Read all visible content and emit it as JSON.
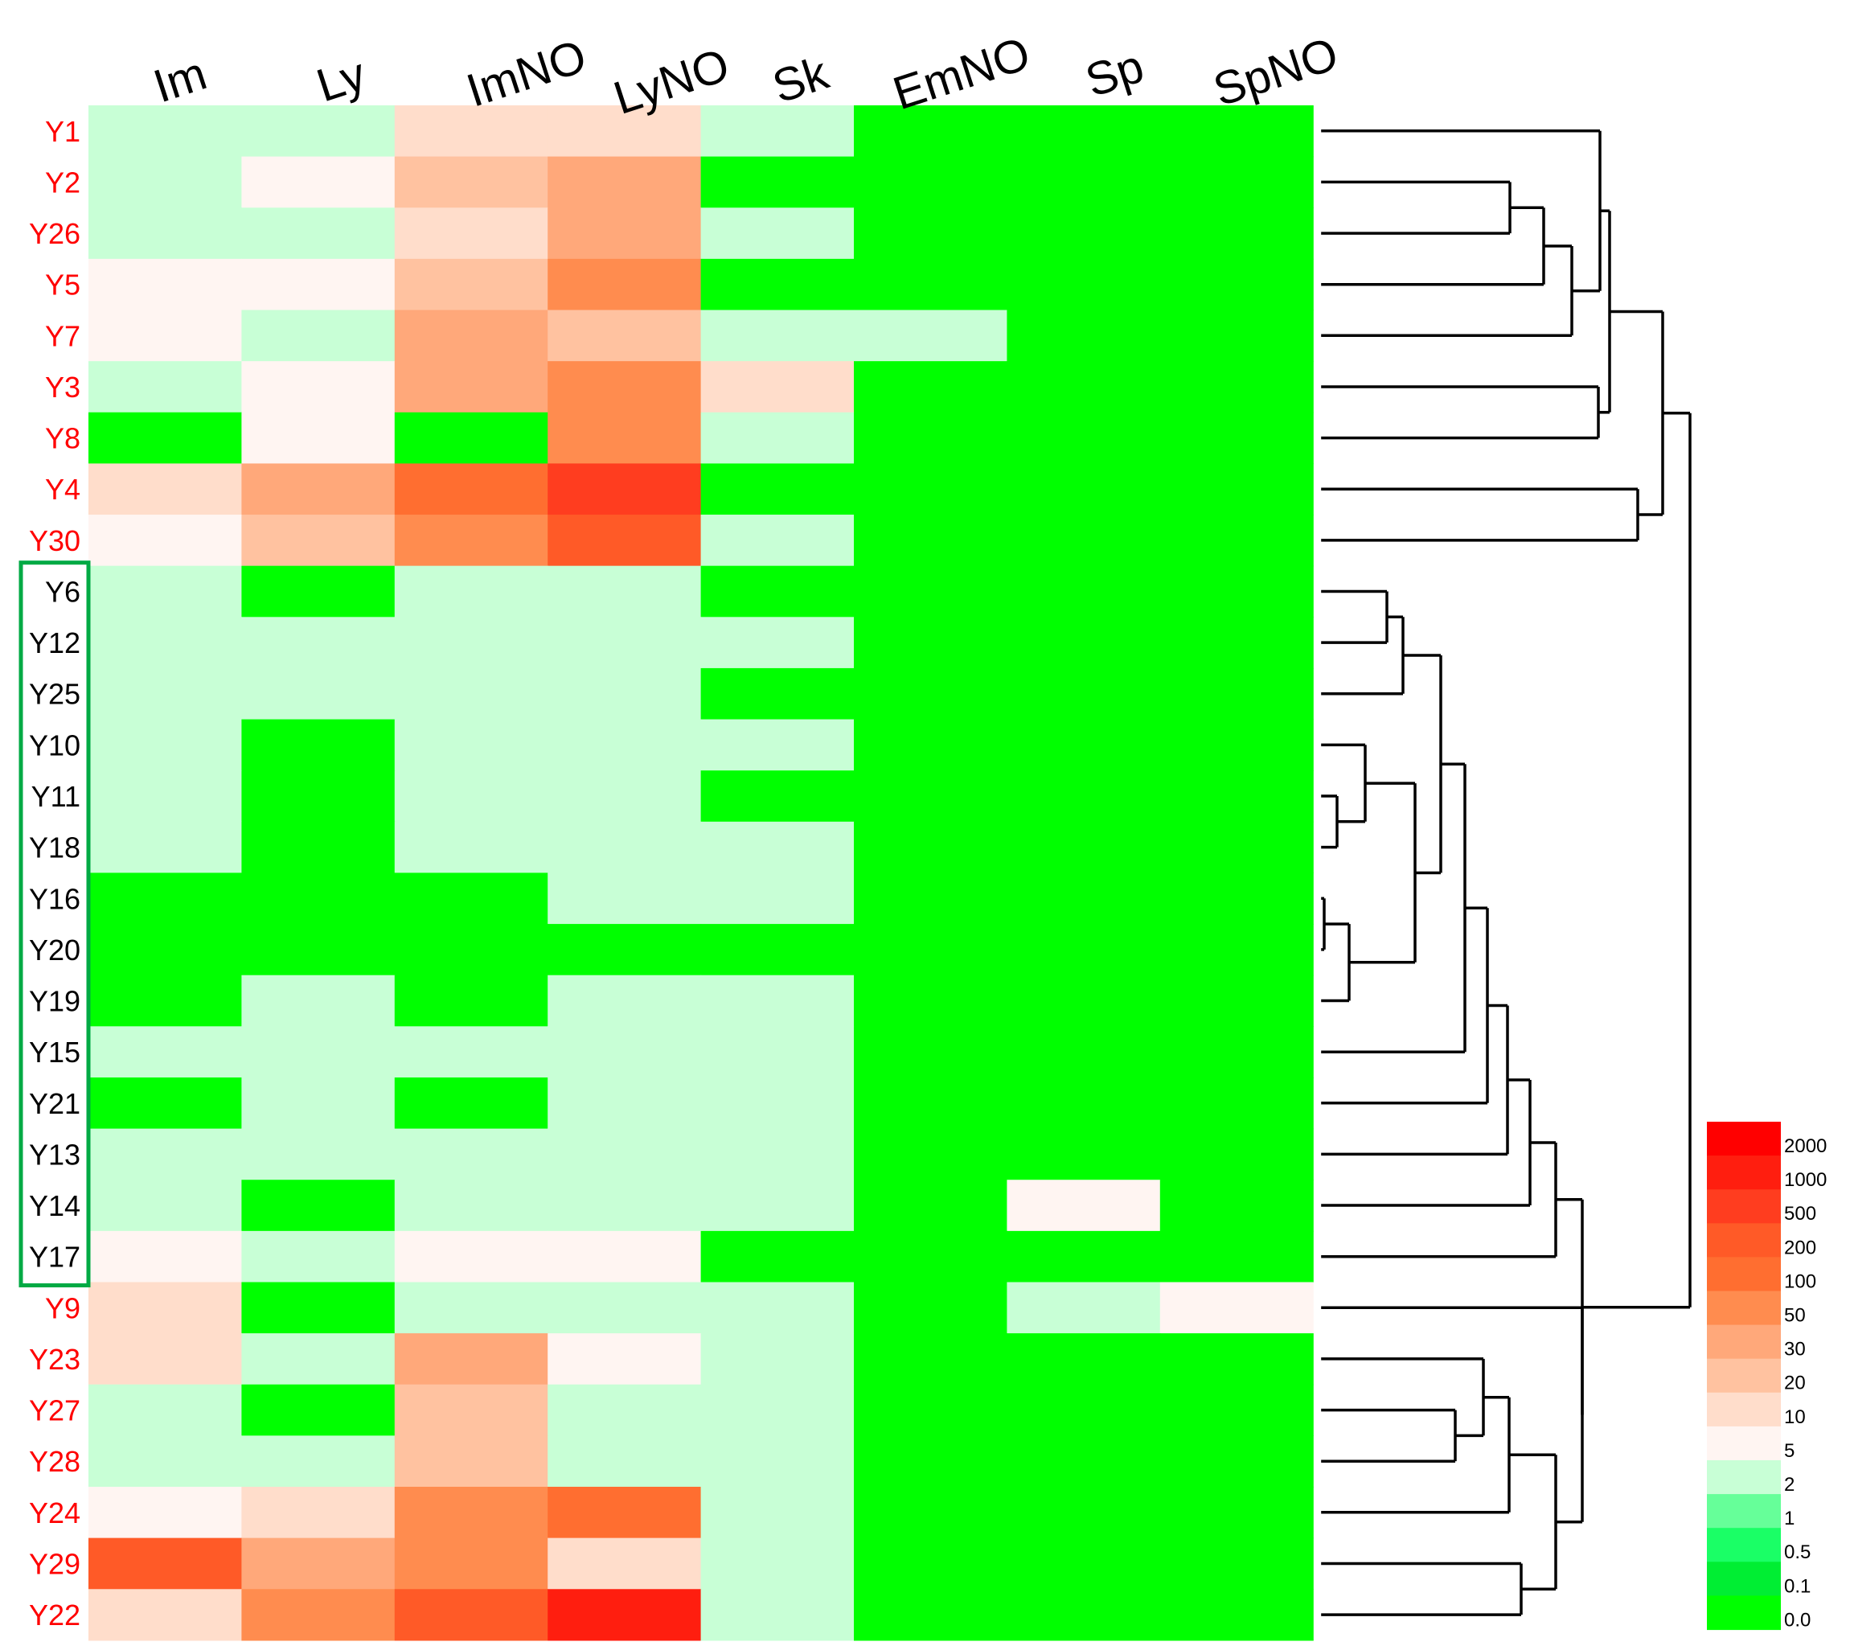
{
  "chart_data": {
    "type": "heatmap",
    "title": "",
    "columns": [
      "Im",
      "Ly",
      "ImNO",
      "LyNO",
      "Sk",
      "EmNO",
      "Sp",
      "SpNO"
    ],
    "rows": [
      "Y1",
      "Y2",
      "Y26",
      "Y5",
      "Y7",
      "Y3",
      "Y8",
      "Y4",
      "Y30",
      "Y6",
      "Y12",
      "Y25",
      "Y10",
      "Y11",
      "Y18",
      "Y16",
      "Y20",
      "Y19",
      "Y15",
      "Y21",
      "Y13",
      "Y14",
      "Y17",
      "Y9",
      "Y23",
      "Y27",
      "Y28",
      "Y24",
      "Y29",
      "Y22"
    ],
    "highlighted_rows": [
      "Y1",
      "Y2",
      "Y26",
      "Y5",
      "Y7",
      "Y3",
      "Y8",
      "Y4",
      "Y30",
      "Y9",
      "Y23",
      "Y27",
      "Y28",
      "Y24",
      "Y29",
      "Y22"
    ],
    "boxed_rows": [
      "Y6",
      "Y12",
      "Y25",
      "Y10",
      "Y11",
      "Y18",
      "Y16",
      "Y20",
      "Y19",
      "Y15",
      "Y21",
      "Y13",
      "Y14",
      "Y17"
    ],
    "values": [
      [
        2,
        2,
        10,
        10,
        2,
        0.1,
        0.1,
        0.1
      ],
      [
        2,
        5,
        20,
        30,
        0.1,
        0.1,
        0.1,
        0.1
      ],
      [
        2,
        2,
        10,
        30,
        2,
        0.1,
        0.1,
        0.1
      ],
      [
        5,
        5,
        20,
        50,
        0.1,
        0.1,
        0.1,
        0.1
      ],
      [
        5,
        2,
        30,
        20,
        2,
        2,
        0.1,
        0.1
      ],
      [
        2,
        5,
        30,
        50,
        10,
        0.1,
        0.1,
        0.1
      ],
      [
        0.1,
        5,
        0.1,
        50,
        2,
        0.1,
        0.1,
        0.1
      ],
      [
        10,
        30,
        100,
        500,
        0.1,
        0.1,
        0.1,
        0.1
      ],
      [
        5,
        20,
        50,
        200,
        2,
        0.1,
        0.1,
        0.1
      ],
      [
        2,
        0.1,
        2,
        2,
        0.1,
        0.1,
        0.1,
        0.1
      ],
      [
        2,
        2,
        2,
        2,
        2,
        0.1,
        0.1,
        0.1
      ],
      [
        2,
        2,
        2,
        2,
        0.1,
        0.1,
        0.1,
        0.1
      ],
      [
        2,
        0.1,
        2,
        2,
        2,
        0.1,
        0.1,
        0.1
      ],
      [
        2,
        0.1,
        2,
        2,
        0.1,
        0.1,
        0.1,
        0.1
      ],
      [
        2,
        0.1,
        2,
        2,
        2,
        0.1,
        0.1,
        0.1
      ],
      [
        0.1,
        0.1,
        0.1,
        2,
        2,
        0.1,
        0.1,
        0.1
      ],
      [
        0.1,
        0.1,
        0.1,
        0.1,
        0.1,
        0.1,
        0.1,
        0.1
      ],
      [
        0.1,
        2,
        0.1,
        2,
        2,
        0.1,
        0.1,
        0.1
      ],
      [
        2,
        2,
        2,
        2,
        2,
        0.1,
        0.1,
        0.1
      ],
      [
        0.1,
        2,
        0.1,
        2,
        2,
        0.1,
        0.1,
        0.1
      ],
      [
        2,
        2,
        2,
        2,
        2,
        0.1,
        0.1,
        0.1
      ],
      [
        2,
        0.1,
        2,
        2,
        2,
        0.1,
        5,
        0.1
      ],
      [
        5,
        2,
        5,
        5,
        0.1,
        0.1,
        0.1,
        0.1
      ],
      [
        10,
        0.1,
        2,
        2,
        2,
        0.1,
        2,
        5
      ],
      [
        10,
        2,
        30,
        5,
        2,
        0.1,
        0.1,
        0.1
      ],
      [
        2,
        0.1,
        20,
        2,
        2,
        0.1,
        0.1,
        0.1
      ],
      [
        2,
        2,
        20,
        2,
        2,
        0.1,
        0.1,
        0.1
      ],
      [
        5,
        10,
        50,
        100,
        2,
        0.1,
        0.1,
        0.1
      ],
      [
        200,
        30,
        50,
        10,
        2,
        0.1,
        0.1,
        0.1
      ],
      [
        10,
        50,
        200,
        1000,
        2,
        0.1,
        0.1,
        0.1
      ]
    ],
    "legend": {
      "labels": [
        "2000",
        "1000",
        "500",
        "200",
        "100",
        "50",
        "30",
        "20",
        "10",
        "5",
        "2",
        "1",
        "0.5",
        "0.1",
        "0.0"
      ],
      "colors": [
        "#ff0000",
        "#ff1e0f",
        "#ff3d1f",
        "#ff5a27",
        "#ff6e30",
        "#ff8c4f",
        "#ffa87a",
        "#ffc2a0",
        "#ffddcb",
        "#fff5f2",
        "#c8ffd6",
        "#66ff99",
        "#1aff66",
        "#00ee33",
        "#00ff00"
      ]
    },
    "bins": {
      "0.1": "#00ff00",
      "2": "#c8ffd6",
      "5": "#fff5f2",
      "10": "#ffddcb",
      "20": "#ffc2a0",
      "30": "#ffa87a",
      "50": "#ff8c4f",
      "100": "#ff6e30",
      "200": "#ff5a27",
      "500": "#ff3d1f",
      "1000": "#ff1e0f"
    },
    "dendrogram": {
      "name": "root",
      "children": [
        {
          "name": "n_top",
          "children": [
            {
              "name": "n_a",
              "children": [
                {
                  "name": "n_b",
                  "children": [
                    {
                      "name": "n_c",
                      "children": [
                        "Y1",
                        {
                          "name": "n_d",
                          "children": [
                            {
                              "name": "n_e",
                              "children": [
                                {
                                  "name": "n_f",
                                  "children": [
                                    "Y2",
                                    "Y26"
                                  ]
                                },
                                "Y5"
                              ]
                            },
                            "Y7"
                          ]
                        }
                      ]
                    },
                    {
                      "name": "n_g",
                      "children": [
                        "Y3",
                        "Y8"
                      ]
                    }
                  ]
                },
                {
                  "name": "n_h",
                  "children": [
                    "Y4",
                    "Y30"
                  ]
                }
              ]
            }
          ]
        },
        {
          "name": "n_bottom",
          "children": [
            {
              "name": "n_i",
              "children": [
                {
                  "name": "n_j",
                  "children": [
                    {
                      "name": "n_k",
                      "children": [
                        {
                          "name": "n_l",
                          "children": [
                            {
                              "name": "n_m",
                              "children": [
                                {
                                  "name": "n_n",
                                  "children": [
                                    {
                                      "name": "n_o",
                                      "children": [
                                        {
                                          "name": "n_p",
                                          "children": [
                                            "Y6",
                                            "Y12"
                                          ]
                                        },
                                        "Y25"
                                      ]
                                    },
                                    {
                                      "name": "n_q",
                                      "children": [
                                        {
                                          "name": "n_r",
                                          "children": [
                                            "Y10",
                                            {
                                              "name": "n_s",
                                              "children": [
                                                "Y11",
                                                "Y18"
                                              ]
                                            }
                                          ]
                                        },
                                        {
                                          "name": "n_t",
                                          "children": [
                                            {
                                              "name": "n_u",
                                              "children": [
                                                "Y16",
                                                "Y20"
                                              ]
                                            },
                                            "Y19"
                                          ]
                                        }
                                      ]
                                    }
                                  ]
                                },
                                "Y15"
                              ]
                            },
                            "Y21"
                          ]
                        },
                        "Y13"
                      ]
                    },
                    "Y14"
                  ]
                },
                "Y17"
              ]
            },
            {
              "name": "n_v",
              "children": [
                "Y9",
                {
                  "name": "n_w",
                  "children": [
                    {
                      "name": "n_x",
                      "children": [
                        {
                          "name": "n_y",
                          "children": [
                            "Y23",
                            {
                              "name": "n_z",
                              "children": [
                                "Y27",
                                "Y28"
                              ]
                            }
                          ]
                        },
                        "Y24"
                      ]
                    },
                    {
                      "name": "n_aa",
                      "children": [
                        "Y29",
                        "Y22"
                      ]
                    }
                  ]
                }
              ]
            }
          ]
        }
      ]
    },
    "colors": {
      "highlight_label": "#ff0000",
      "normal_label": "#000000",
      "box_stroke": "#00aa44",
      "dendro_stroke": "#000000"
    }
  }
}
